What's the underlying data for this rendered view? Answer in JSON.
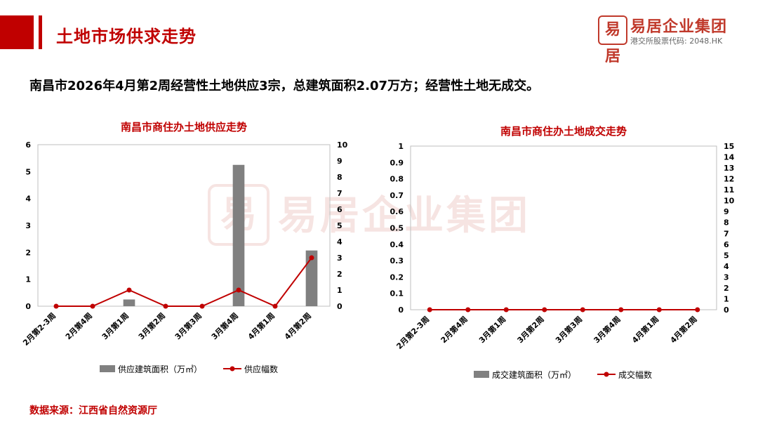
{
  "header": {
    "title": "土地市场供求走势"
  },
  "logo": {
    "mark": "易居",
    "name": "易居企业集团",
    "sub": "港交所股票代码: 2048.HK"
  },
  "watermark": {
    "name": "易居企业集团"
  },
  "summary": "南昌市2026年4月第2周经营性土地供应3宗，总建筑面积2.07万方；经营性土地无成交。",
  "source": "数据来源：江西省自然资源厅",
  "colors": {
    "accent": "#c00000",
    "bar": "#808080",
    "line": "#c00000"
  },
  "chart_data": [
    {
      "type": "bar",
      "title": "南昌市商住办土地供应走势",
      "categories": [
        "2月第2-3周",
        "2月第4周",
        "3月第1周",
        "3月第2周",
        "3月第3周",
        "3月第4周",
        "4月第1周",
        "4月第2周"
      ],
      "series": [
        {
          "name": "供应建筑面积（万㎡）",
          "type": "bar",
          "axis": "left",
          "values": [
            0,
            0,
            0.25,
            0,
            0,
            5.25,
            0,
            2.07
          ]
        },
        {
          "name": "供应幅数",
          "type": "line",
          "axis": "right",
          "values": [
            0,
            0,
            1,
            0,
            0,
            1,
            0,
            3
          ]
        }
      ],
      "yleft": {
        "min": 0,
        "max": 6,
        "ticks": [
          "0",
          "1",
          "2",
          "3",
          "4",
          "5",
          "6"
        ]
      },
      "yright": {
        "min": 0,
        "max": 10,
        "ticks": [
          "0",
          "1",
          "2",
          "3",
          "4",
          "5",
          "6",
          "7",
          "8",
          "9",
          "10"
        ]
      },
      "legend": "bottom"
    },
    {
      "type": "bar",
      "title": "南昌市商住办土地成交走势",
      "categories": [
        "2月第2-3周",
        "2月第4周",
        "3月第1周",
        "3月第2周",
        "3月第3周",
        "3月第4周",
        "4月第1周",
        "4月第2周"
      ],
      "series": [
        {
          "name": "成交建筑面积（万㎡）",
          "type": "bar",
          "axis": "left",
          "values": [
            0,
            0,
            0,
            0,
            0,
            0,
            0,
            0
          ]
        },
        {
          "name": "成交幅数",
          "type": "line",
          "axis": "right",
          "values": [
            0,
            0,
            0,
            0,
            0,
            0,
            0,
            0
          ]
        }
      ],
      "yleft": {
        "min": 0,
        "max": 1,
        "ticks": [
          "0",
          "0.1",
          "0.2",
          "0.3",
          "0.4",
          "0.5",
          "0.6",
          "0.7",
          "0.8",
          "0.9",
          "1"
        ]
      },
      "yright": {
        "min": 0,
        "max": 15,
        "ticks": [
          "0",
          "1",
          "2",
          "3",
          "4",
          "5",
          "6",
          "7",
          "8",
          "9",
          "10",
          "11",
          "12",
          "13",
          "14",
          "15"
        ]
      },
      "legend": "bottom"
    }
  ]
}
